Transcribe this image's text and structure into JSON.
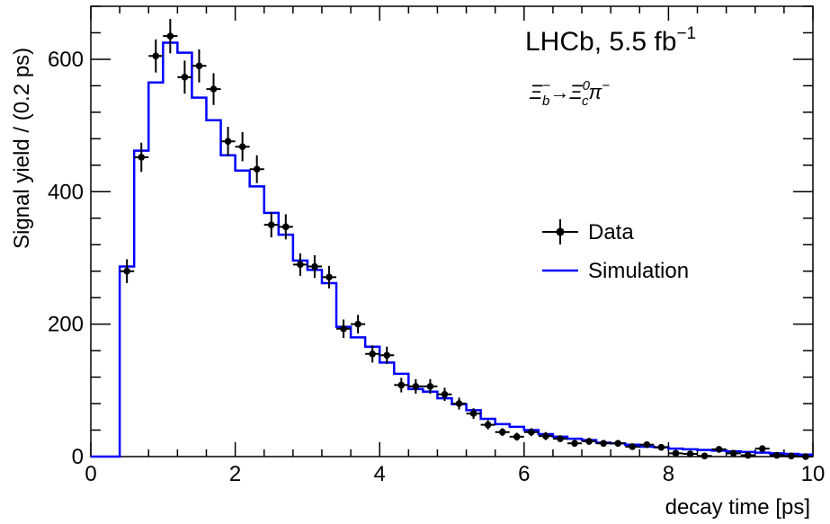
{
  "chart_data": {
    "type": "line",
    "xlabel": "decay time [ps]",
    "ylabel": "Signal yield / (0.2 ps)",
    "xlim": [
      0,
      10
    ],
    "ylim": [
      0,
      680
    ],
    "x_ticks": [
      0,
      2,
      4,
      6,
      8,
      10
    ],
    "y_ticks": [
      0,
      200,
      400,
      600
    ],
    "grid": false,
    "legend_position": "right",
    "annotations": {
      "experiment": "LHCb, 5.5 fb",
      "experiment_sup": "−1",
      "decay": {
        "parent": "Ξ",
        "parent_sub": "b",
        "parent_sup": "−",
        "arrow": "→",
        "child": "Ξ",
        "child_sub": "c",
        "child_sup": "0",
        "pion": "π",
        "pion_sup": "−"
      }
    },
    "legend": [
      {
        "label": "Data",
        "style": "marker-errorbar",
        "color": "#000000"
      },
      {
        "label": "Simulation",
        "style": "line",
        "color": "#0000ff"
      }
    ],
    "series": [
      {
        "name": "Data",
        "color": "#000000",
        "x": [
          0.5,
          0.7,
          0.9,
          1.1,
          1.3,
          1.5,
          1.7,
          1.9,
          2.1,
          2.3,
          2.5,
          2.7,
          2.9,
          3.1,
          3.3,
          3.5,
          3.7,
          3.9,
          4.1,
          4.3,
          4.5,
          4.7,
          4.9,
          5.1,
          5.3,
          5.5,
          5.7,
          5.9,
          6.1,
          6.3,
          6.5,
          6.7,
          6.9,
          7.1,
          7.3,
          7.5,
          7.7,
          7.9,
          8.1,
          8.3,
          8.5,
          8.7,
          8.9,
          9.1,
          9.3,
          9.5,
          9.7,
          9.9
        ],
        "y": [
          280,
          452,
          605,
          635,
          573,
          590,
          555,
          476,
          468,
          434,
          350,
          347,
          290,
          287,
          271,
          193,
          200,
          155,
          153,
          108,
          106,
          106,
          94,
          80,
          65,
          48,
          37,
          30,
          37,
          31,
          27,
          20,
          23,
          20,
          20,
          15,
          18,
          14,
          5,
          4,
          1,
          11,
          5,
          2,
          12,
          2,
          1,
          0
        ],
        "yerr": [
          18,
          22,
          25,
          26,
          25,
          25,
          24,
          22,
          22,
          21,
          19,
          19,
          17,
          17,
          17,
          14,
          14,
          13,
          13,
          11,
          11,
          11,
          10,
          9,
          8,
          7,
          6,
          6,
          6,
          6,
          5,
          5,
          5,
          5,
          5,
          4,
          4,
          4,
          3,
          3,
          2,
          3,
          3,
          2,
          3,
          2,
          2,
          2
        ]
      },
      {
        "name": "Simulation",
        "color": "#0000ff",
        "style": "step",
        "bin_edges": [
          0,
          0.2,
          0.4,
          0.6,
          0.8,
          1.0,
          1.2,
          1.4,
          1.6,
          1.8,
          2.0,
          2.2,
          2.4,
          2.6,
          2.8,
          3.0,
          3.2,
          3.4,
          3.6,
          3.8,
          4.0,
          4.2,
          4.4,
          4.6,
          4.8,
          5.0,
          5.2,
          5.4,
          5.6,
          5.8,
          6.0,
          6.2,
          6.4,
          6.6,
          6.8,
          7.0,
          7.2,
          7.4,
          7.6,
          7.8,
          8.0,
          8.2,
          8.4,
          8.6,
          8.8,
          9.0,
          9.2,
          9.4,
          9.6,
          9.8,
          10.0
        ],
        "values": [
          0,
          0,
          287,
          462,
          565,
          625,
          610,
          542,
          508,
          455,
          432,
          408,
          368,
          335,
          296,
          282,
          262,
          196,
          180,
          166,
          142,
          125,
          102,
          98,
          88,
          79,
          70,
          57,
          49,
          45,
          40,
          34,
          30,
          27,
          25,
          21,
          20,
          18,
          15,
          14,
          12,
          11,
          10,
          9,
          8,
          7,
          6,
          5,
          4,
          3
        ]
      }
    ]
  }
}
